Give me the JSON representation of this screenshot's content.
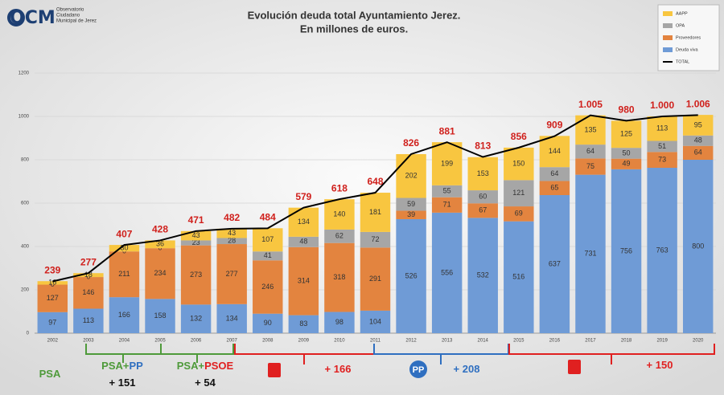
{
  "logo": {
    "mark": "OCM",
    "lines": [
      "Observatorio",
      "Ciudadano",
      "Municipal de Jerez"
    ]
  },
  "chart_data": {
    "type": "bar",
    "stacked": true,
    "title": [
      "Evolución deuda total Ayuntamiento Jerez.",
      "En millones de euros."
    ],
    "categories": [
      "2002",
      "2003",
      "2004",
      "2005",
      "2006",
      "2007",
      "2008",
      "2009",
      "2010",
      "2011",
      "2012",
      "2013",
      "2014",
      "2015",
      "2016",
      "2017",
      "2018",
      "2019",
      "2020"
    ],
    "series": [
      {
        "name": "Deuda viva",
        "color": "#6f9bd6",
        "values": [
          97,
          113,
          166,
          158,
          132,
          134,
          90,
          83,
          98,
          104,
          526,
          556,
          532,
          516,
          637,
          731,
          756,
          763,
          800
        ]
      },
      {
        "name": "Proveedores",
        "color": "#e3843f",
        "values": [
          127,
          146,
          211,
          234,
          273,
          277,
          246,
          314,
          318,
          291,
          39,
          71,
          67,
          69,
          65,
          75,
          49,
          73,
          64
        ]
      },
      {
        "name": "OPA",
        "color": "#a6a6a6",
        "values": [
          0,
          0,
          0,
          0,
          23,
          28,
          41,
          48,
          62,
          72,
          59,
          55,
          60,
          121,
          64,
          64,
          50,
          51,
          48
        ]
      },
      {
        "name": "AAPP",
        "color": "#f8c640",
        "values": [
          16,
          18,
          30,
          36,
          43,
          43,
          107,
          134,
          140,
          181,
          202,
          199,
          153,
          150,
          144,
          135,
          125,
          113,
          95
        ]
      }
    ],
    "line": {
      "name": "TOTAL",
      "color": "#000000",
      "values": [
        239,
        277,
        407,
        428,
        471,
        482,
        484,
        579,
        618,
        648,
        826,
        881,
        813,
        856,
        909,
        1005,
        980,
        1000,
        1006
      ],
      "value_labels": [
        "239",
        "277",
        "407",
        "428",
        "471",
        "482",
        "484",
        "579",
        "618",
        "648",
        "826",
        "881",
        "813",
        "856",
        "909",
        "1.005",
        "980",
        "1.000",
        "1.006"
      ],
      "label_color": "#d0201c"
    },
    "ylim": [
      0,
      1200
    ],
    "yticks": [
      0,
      200,
      400,
      600,
      800,
      1000,
      1200
    ],
    "grid": true,
    "legend": "top-right",
    "annotations": [
      {
        "parts": [
          {
            "text": "PSA",
            "color": "#4e9a3a"
          }
        ]
      },
      {
        "parts": [
          {
            "text": "PSA+",
            "color": "#4e9a3a"
          },
          {
            "text": "PP",
            "color": "#2f6fc0"
          }
        ]
      },
      {
        "parts": [
          {
            "text": "+ 151",
            "color": "#111111"
          }
        ]
      },
      {
        "parts": [
          {
            "text": "PSA+",
            "color": "#4e9a3a"
          },
          {
            "text": "PSOE",
            "color": "#e02020"
          }
        ]
      },
      {
        "parts": [
          {
            "text": "+ 54",
            "color": "#111111"
          }
        ]
      },
      {
        "parts": [
          {
            "text": "+ 166",
            "color": "#e02020"
          }
        ]
      },
      {
        "parts": [
          {
            "text": "PP",
            "color": "#ffffff"
          }
        ]
      },
      {
        "parts": [
          {
            "text": "+ 208",
            "color": "#2f6fc0"
          }
        ]
      },
      {
        "parts": [
          {
            "text": "+ 150",
            "color": "#e02020"
          }
        ]
      }
    ]
  }
}
